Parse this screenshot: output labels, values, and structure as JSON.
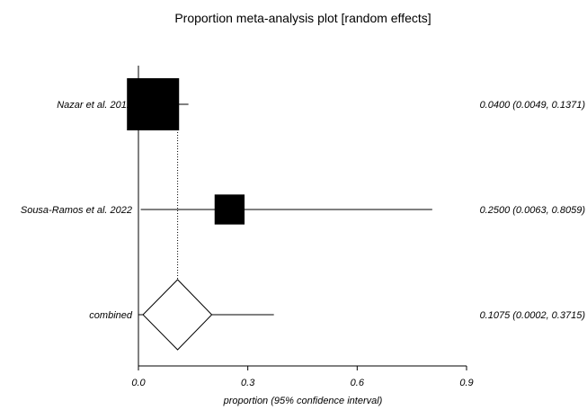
{
  "chart_data": {
    "type": "forest",
    "title": "Proportion meta-analysis plot [random effects]",
    "xlabel": "proportion (95% confidence interval)",
    "xlim": [
      0.0,
      0.9
    ],
    "xticks": [
      "0.0",
      "0.3",
      "0.6",
      "0.9"
    ],
    "xtick_values": [
      0.0,
      0.3,
      0.6,
      0.9
    ],
    "studies": [
      {
        "name": "Nazar et al. 2012",
        "estimate": 0.04,
        "ci_low": 0.0049,
        "ci_high": 0.1371,
        "ci_text": "0.0400 (0.0049, 0.1371)",
        "weight": 1.0
      },
      {
        "name": "Sousa-Ramos et al.  2022",
        "estimate": 0.25,
        "ci_low": 0.0063,
        "ci_high": 0.8059,
        "ci_text": "0.2500 (0.0063, 0.8059)",
        "weight": 0.33
      }
    ],
    "combined": {
      "name": "combined",
      "estimate": 0.1075,
      "ci_low": 0.0002,
      "ci_high": 0.3715,
      "ci_text": "0.1075 (0.0002, 0.3715)"
    },
    "reference_line": 0.1075
  }
}
